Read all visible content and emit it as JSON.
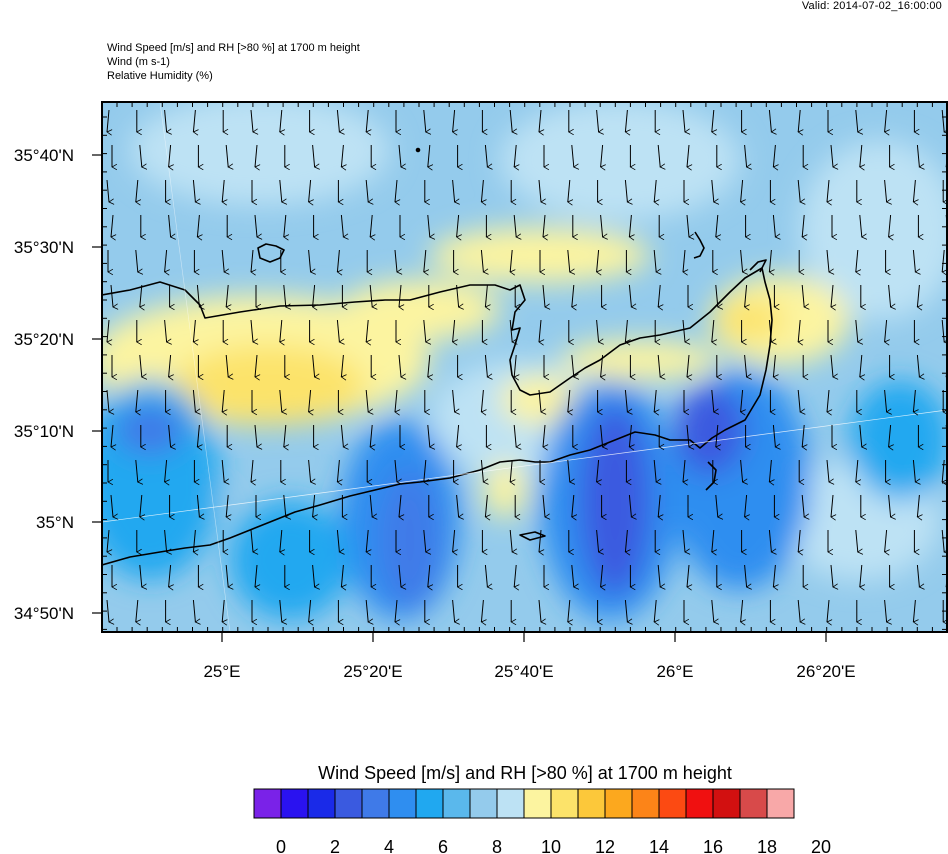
{
  "valid_time": "Valid: 2014-07-02_16:00:00",
  "header": {
    "line1": "Wind Speed [m/s] and RH [>80 %] at 1700 m height",
    "line2": "Wind   (m s-1)",
    "line3": "Relative Humidity   (%)"
  },
  "lat_labels": [
    "35°40'N",
    "35°30'N",
    "35°20'N",
    "35°10'N",
    "35°N",
    "34°50'N"
  ],
  "lon_labels": [
    "25°E",
    "25°20'E",
    "25°40'E",
    "26°E",
    "26°20'E"
  ],
  "colorbar": {
    "title": "Wind Speed [m/s] and RH [>80 %] at 1700 m height",
    "tick_labels": [
      "0",
      "2",
      "4",
      "6",
      "8",
      "10",
      "12",
      "14",
      "16",
      "18",
      "20"
    ],
    "colors": [
      "#7a22e8",
      "#2a12f0",
      "#1a2ae8",
      "#3a5ae0",
      "#3f7ae8",
      "#2f8ef0",
      "#20a8f0",
      "#5ab8ec",
      "#94cbec",
      "#bde2f4",
      "#fcf4a0",
      "#fce36a",
      "#fcc83a",
      "#fca81e",
      "#fc8418",
      "#fc4a12",
      "#f01010",
      "#d21010",
      "#d84a4a",
      "#f8a8a8"
    ]
  },
  "wind_direction": "south"
}
